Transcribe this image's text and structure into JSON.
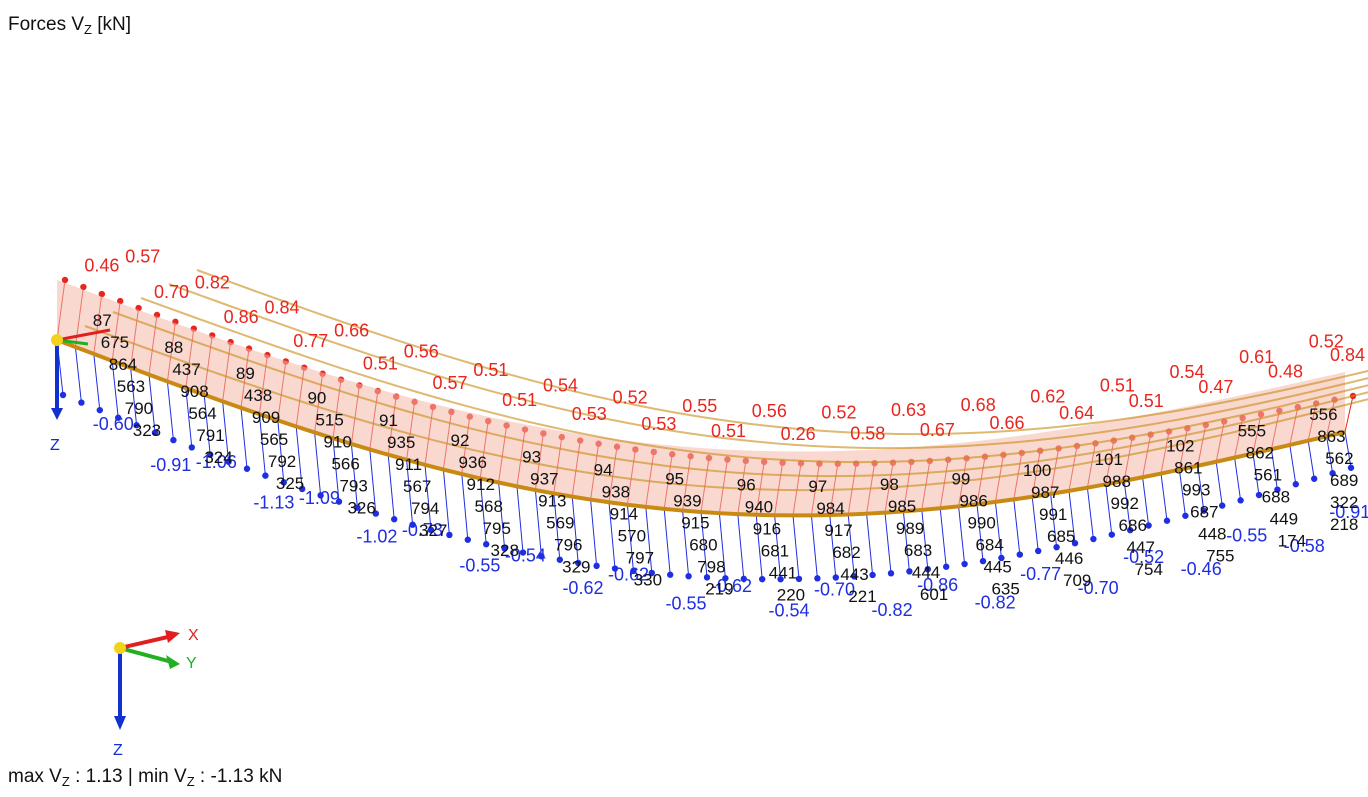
{
  "header": {
    "title_prefix": "Forces V",
    "title_sub": "Z",
    "title_suffix": " [kN]"
  },
  "footer": {
    "max_label": "max V",
    "max_sub": "Z",
    "max_value": " : 1.13 | min V",
    "min_sub": "Z",
    "min_value": " : -1.13 kN"
  },
  "axes": {
    "x_label": "X",
    "y_label": "Y",
    "z_label": "Z",
    "origin_z_label": "Z",
    "origin_x_label": "X",
    "origin_y_label": "Y",
    "colors": {
      "x": "#e02020",
      "y": "#22b022",
      "z": "#1030d0"
    }
  },
  "colors": {
    "positive": "#e8251e",
    "negative": "#1f2ee0",
    "member_fill": "#f2b8a8",
    "member_edge": "#c98a14"
  },
  "positive_labels": [
    "0.46",
    "0.57",
    "0.70",
    "0.82",
    "0.86",
    "0.84",
    "0.77",
    "0.66",
    "0.51",
    "0.56",
    "0.57",
    "0.51",
    "0.51",
    "0.54",
    "0.53",
    "0.52",
    "0.53",
    "0.55",
    "0.51",
    "0.56",
    "0.26",
    "0.52",
    "0.58",
    "0.63",
    "0.67",
    "0.68",
    "0.66",
    "0.62",
    "0.64",
    "0.51",
    "0.51",
    "0.54",
    "0.47",
    "0.61",
    "0.48",
    "0.52",
    "0.84"
  ],
  "negative_labels": [
    "-0.60",
    "-0.91",
    "-1.06",
    "-1.13",
    "-1.09",
    "-1.02",
    "-0.73",
    "-0.55",
    "-0.54",
    "-0.62",
    "-0.62",
    "-0.55",
    "-0.62",
    "-0.54",
    "-0.70",
    "-0.82",
    "-0.86",
    "-0.82",
    "-0.77",
    "-0.70",
    "-0.52",
    "-0.46",
    "-0.55",
    "-0.58",
    "-0.91"
  ],
  "member_numbers": [
    "87",
    "88",
    "89",
    "90",
    "91",
    "92",
    "93",
    "94",
    "95",
    "96",
    "97",
    "98",
    "99",
    "100",
    "101",
    "102",
    "555",
    "556",
    "675",
    "437",
    "438",
    "515",
    "935",
    "936",
    "937",
    "938",
    "939",
    "940",
    "984",
    "985",
    "986",
    "987",
    "988",
    "861",
    "862",
    "863",
    "864",
    "908",
    "909",
    "910",
    "911",
    "912",
    "913",
    "914",
    "915",
    "916",
    "917",
    "989",
    "990",
    "991",
    "992",
    "993",
    "561",
    "562",
    "563",
    "564",
    "565",
    "566",
    "567",
    "568",
    "569",
    "570",
    "680",
    "681",
    "682",
    "683",
    "684",
    "685",
    "686",
    "687",
    "688",
    "689",
    "790",
    "791",
    "792",
    "793",
    "794",
    "795",
    "796",
    "797",
    "798",
    "441",
    "443",
    "444",
    "445",
    "446",
    "447",
    "448",
    "449",
    "322",
    "323",
    "324",
    "325",
    "326",
    "327",
    "328",
    "329",
    "330",
    "219",
    "220",
    "221",
    "601",
    "635",
    "709",
    "754",
    "755",
    "174",
    "218"
  ]
}
